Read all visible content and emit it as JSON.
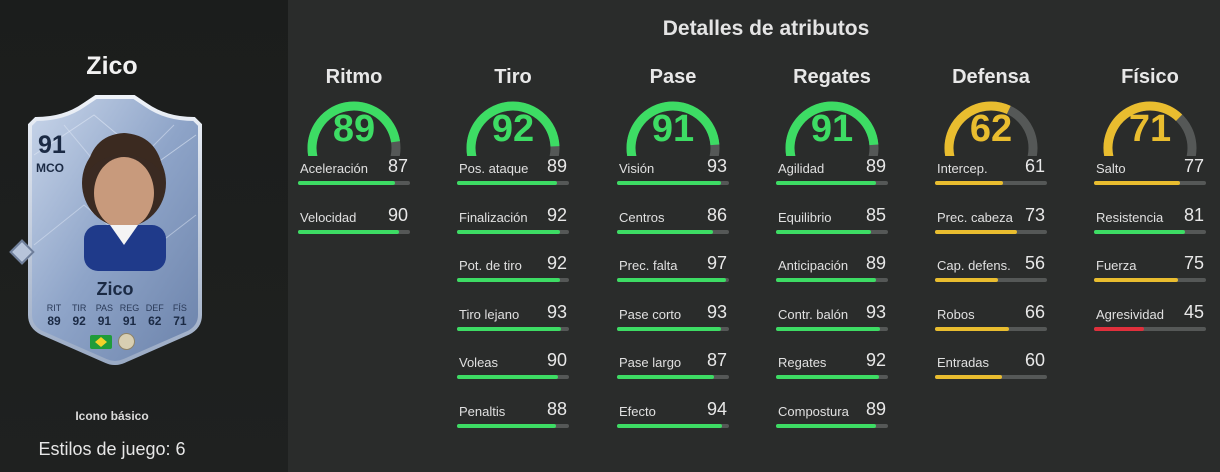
{
  "player": {
    "name": "Zico",
    "card": {
      "rating": "91",
      "position": "MCO",
      "name": "Zico",
      "stats": [
        {
          "label": "RIT",
          "value": "89"
        },
        {
          "label": "TIR",
          "value": "92"
        },
        {
          "label": "PAS",
          "value": "91"
        },
        {
          "label": "REG",
          "value": "91"
        },
        {
          "label": "DEF",
          "value": "62"
        },
        {
          "label": "FÍS",
          "value": "71"
        }
      ]
    },
    "card_type": "Icono básico",
    "playstyles": "Estilos de juego: 6"
  },
  "section_title": "Detalles de atributos",
  "colors": {
    "high": "#3ddc64",
    "mid": "#e9bd2f",
    "low": "#e0303c",
    "track": "#555857"
  },
  "categories": [
    {
      "title": "Ritmo",
      "value": 89,
      "attributes": [
        {
          "label": "Aceleración",
          "value": 87
        },
        {
          "label": "Velocidad",
          "value": 90
        }
      ]
    },
    {
      "title": "Tiro",
      "value": 92,
      "attributes": [
        {
          "label": "Pos. ataque",
          "value": 89
        },
        {
          "label": "Finalización",
          "value": 92
        },
        {
          "label": "Pot. de tiro",
          "value": 92
        },
        {
          "label": "Tiro lejano",
          "value": 93
        },
        {
          "label": "Voleas",
          "value": 90
        },
        {
          "label": "Penaltis",
          "value": 88
        }
      ]
    },
    {
      "title": "Pase",
      "value": 91,
      "attributes": [
        {
          "label": "Visión",
          "value": 93
        },
        {
          "label": "Centros",
          "value": 86
        },
        {
          "label": "Prec. falta",
          "value": 97
        },
        {
          "label": "Pase corto",
          "value": 93
        },
        {
          "label": "Pase largo",
          "value": 87
        },
        {
          "label": "Efecto",
          "value": 94
        }
      ]
    },
    {
      "title": "Regates",
      "value": 91,
      "attributes": [
        {
          "label": "Agilidad",
          "value": 89
        },
        {
          "label": "Equilibrio",
          "value": 85
        },
        {
          "label": "Anticipación",
          "value": 89
        },
        {
          "label": "Contr. balón",
          "value": 93
        },
        {
          "label": "Regates",
          "value": 92
        },
        {
          "label": "Compostura",
          "value": 89
        }
      ]
    },
    {
      "title": "Defensa",
      "value": 62,
      "attributes": [
        {
          "label": "Intercep.",
          "value": 61
        },
        {
          "label": "Prec. cabeza",
          "value": 73
        },
        {
          "label": "Cap. defens.",
          "value": 56
        },
        {
          "label": "Robos",
          "value": 66
        },
        {
          "label": "Entradas",
          "value": 60
        }
      ]
    },
    {
      "title": "Físico",
      "value": 71,
      "attributes": [
        {
          "label": "Salto",
          "value": 77
        },
        {
          "label": "Resistencia",
          "value": 81
        },
        {
          "label": "Fuerza",
          "value": 75
        },
        {
          "label": "Agresividad",
          "value": 45
        }
      ]
    }
  ]
}
